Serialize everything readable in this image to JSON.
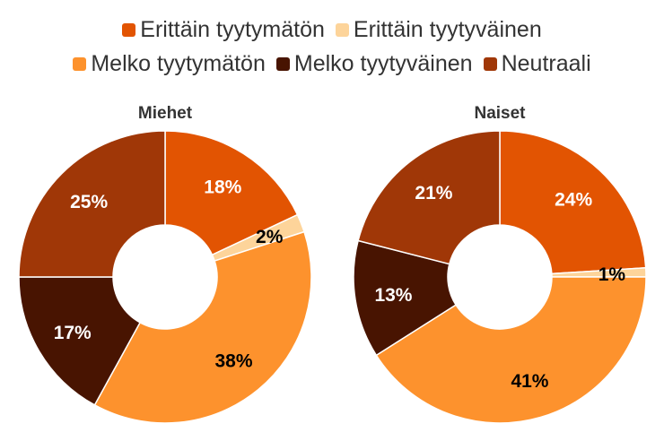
{
  "chart_data": {
    "type": "pie",
    "variant": "donut",
    "legend": {
      "position": "top",
      "rows": [
        [
          "Erittäin tyytymätön",
          "Erittäin tyytyväinen"
        ],
        [
          "Melko tyytymätön",
          "Melko tyytyväinen",
          "Neutraali"
        ]
      ]
    },
    "categories": [
      "Erittäin tyytymätön",
      "Erittäin tyytyväinen",
      "Melko tyytymätön",
      "Melko tyytyväinen",
      "Neutraali"
    ],
    "colors": {
      "Erittäin tyytymätön": "#e25402",
      "Erittäin tyytyväinen": "#fdd49a",
      "Melko tyytymätön": "#fd922d",
      "Melko tyytyväinen": "#481401",
      "Neutraali": "#a03707"
    },
    "charts": [
      {
        "title": "Miehet",
        "values": [
          18,
          2,
          38,
          17,
          25
        ],
        "labels": [
          "18%",
          "2%",
          "38%",
          "17%",
          "25%"
        ],
        "label_colors": [
          "#ffffff",
          "#000000",
          "#000000",
          "#ffffff",
          "#ffffff"
        ]
      },
      {
        "title": "Naiset",
        "values": [
          24,
          1,
          41,
          13,
          21
        ],
        "labels": [
          "24%",
          "1%",
          "41%",
          "13%",
          "21%"
        ],
        "label_colors": [
          "#ffffff",
          "#000000",
          "#000000",
          "#ffffff",
          "#ffffff"
        ]
      }
    ]
  }
}
